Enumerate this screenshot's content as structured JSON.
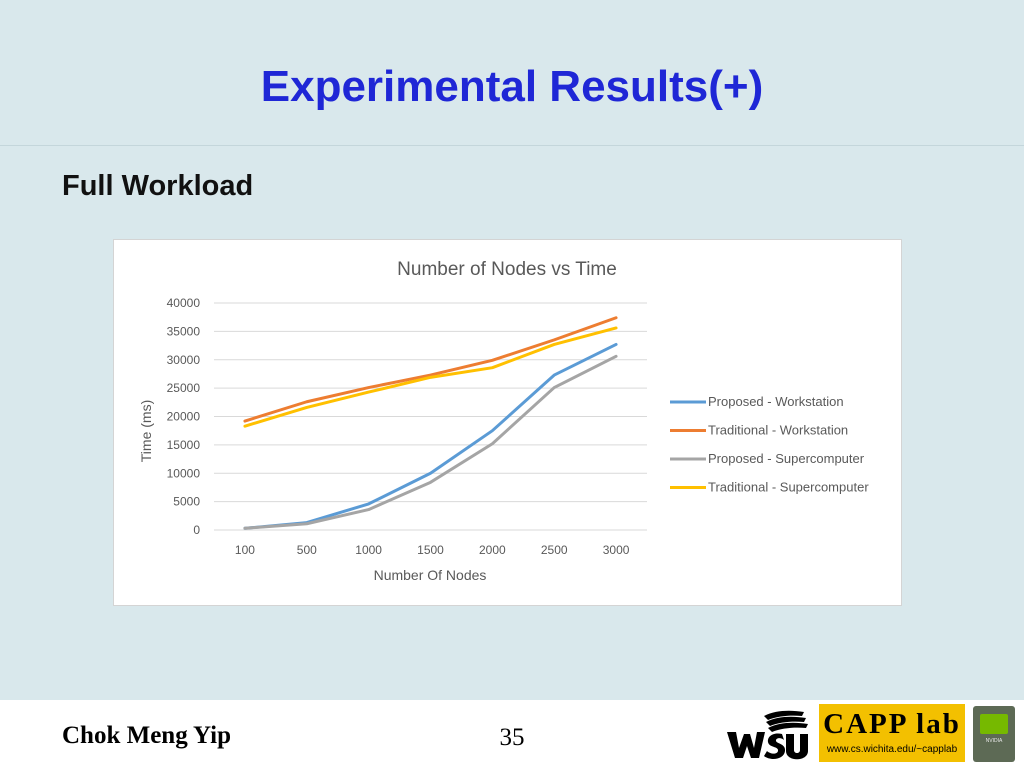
{
  "slide": {
    "title": "Experimental Results(+)",
    "subtitle": "Full Workload"
  },
  "footer": {
    "author": "Chok Meng Yip",
    "page_number": "35",
    "logos": {
      "wsu": "WSU",
      "capp": "CAPP lab",
      "capp_url": "www.cs.wichita.edu/~capplab",
      "nvidia": "NVIDIA"
    }
  },
  "chart_data": {
    "type": "line",
    "title": "Number of Nodes vs Time",
    "xlabel": "Number Of Nodes",
    "ylabel": "Time (ms)",
    "categories": [
      "100",
      "500",
      "1000",
      "1500",
      "2000",
      "2500",
      "3000"
    ],
    "ylim": [
      0,
      40000
    ],
    "yticks": [
      0,
      5000,
      10000,
      15000,
      20000,
      25000,
      30000,
      35000,
      40000
    ],
    "grid": true,
    "legend_position": "right",
    "series": [
      {
        "name": "Proposed - Workstation",
        "color": "#5b9bd5",
        "values": [
          300,
          1300,
          4600,
          10000,
          17500,
          27300,
          32700
        ]
      },
      {
        "name": "Traditional - Workstation",
        "color": "#ed7d31",
        "values": [
          19200,
          22600,
          25100,
          27300,
          29900,
          33500,
          37400
        ]
      },
      {
        "name": "Proposed - Supercomputer",
        "color": "#a5a5a5",
        "values": [
          300,
          1100,
          3600,
          8400,
          15200,
          25100,
          30600
        ]
      },
      {
        "name": "Traditional - Supercomputer",
        "color": "#ffc000",
        "values": [
          18300,
          21600,
          24300,
          26900,
          28600,
          32700,
          35600
        ]
      }
    ]
  }
}
